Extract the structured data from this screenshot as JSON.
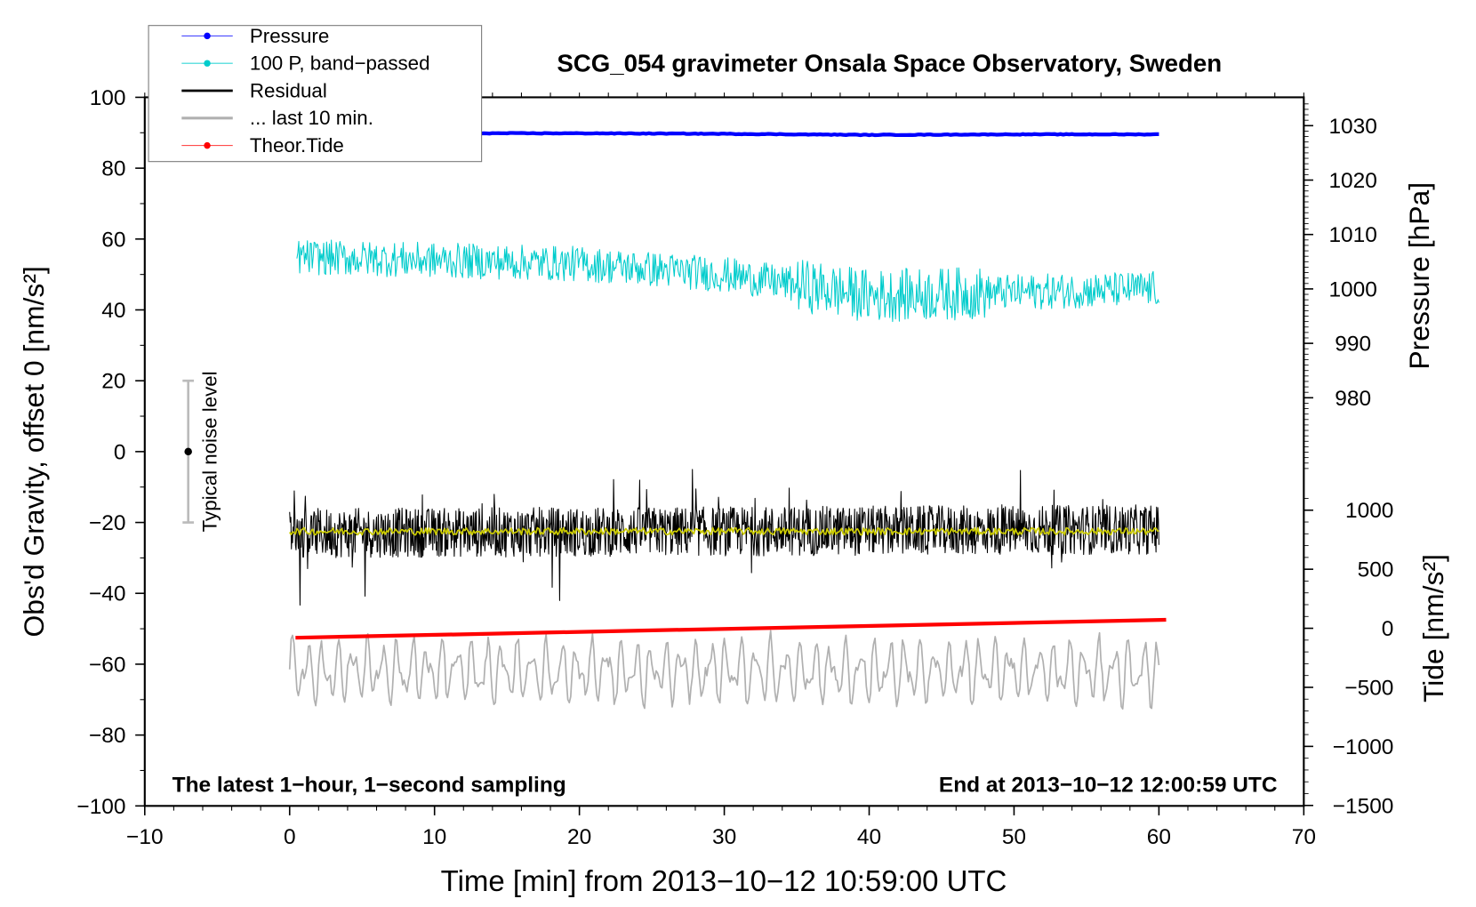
{
  "chart_data": {
    "type": "line",
    "title": "SCG_054 gravimeter Onsala Space Observatory, Sweden",
    "xlabel": "Time [min] from 2013−10−12 10:59:00 UTC",
    "ylabel_left": "Obs'd Gravity, offset 0 [nm/s²]",
    "ylabel_right_pressure": "Pressure [hPa]",
    "ylabel_right_tide": "Tide [nm/s²]",
    "xlim": [
      -10,
      70
    ],
    "ylim_left": [
      -100,
      100
    ],
    "pressure_axis_range": [
      980,
      1030
    ],
    "tide_axis_range": [
      -1500,
      1000
    ],
    "x_ticks": [
      "−10",
      "0",
      "10",
      "20",
      "30",
      "40",
      "50",
      "60",
      "70"
    ],
    "x_tick_values": [
      -10,
      0,
      10,
      20,
      30,
      40,
      50,
      60,
      70
    ],
    "y_left_ticks": [
      "100",
      "80",
      "60",
      "40",
      "20",
      "0",
      "−20",
      "−40",
      "−60",
      "−80",
      "−100"
    ],
    "y_left_tick_values": [
      100,
      80,
      60,
      40,
      20,
      0,
      -20,
      -40,
      -60,
      -80,
      -100
    ],
    "pressure_ticks": [
      "1030",
      "1020",
      "1010",
      "1000",
      "990",
      "980"
    ],
    "pressure_tick_values": [
      1030,
      1020,
      1010,
      1000,
      990,
      980
    ],
    "tide_ticks": [
      "1000",
      "500",
      "0",
      "−500",
      "−1000",
      "−1500"
    ],
    "tide_tick_values": [
      1000,
      500,
      0,
      -500,
      -1000,
      -1500
    ],
    "annotation_left": "The latest 1−hour, 1−second sampling",
    "annotation_right": "End at 2013−10−12 12:00:59 UTC",
    "noise_bar": {
      "label": "Typical noise level",
      "x": -7,
      "center": 0,
      "low": -20,
      "high": 20
    },
    "legend": {
      "placement": "top-left",
      "entries": [
        {
          "label": "Pressure",
          "color": "#0000ff",
          "marker": true
        },
        {
          "label": "100 P, band−passed",
          "color": "#00cccc",
          "marker": true
        },
        {
          "label": "Residual",
          "color": "#000000",
          "marker": false
        },
        {
          "label": "... last 10 min.",
          "color": "#b0b0b0",
          "marker": false
        },
        {
          "label": "Theor.Tide",
          "color": "#ff0000",
          "marker": true
        }
      ]
    },
    "series": [
      {
        "name": "Pressure",
        "axis": "pressure",
        "color": "#0000ff",
        "x": [
          0,
          10,
          20,
          30,
          40,
          50,
          60
        ],
        "values": [
          1028.7,
          1028.6,
          1028.6,
          1028.5,
          1028.3,
          1028.4,
          1028.4
        ]
      },
      {
        "name": "100 P, band-passed",
        "axis": "left",
        "color": "#00cccc",
        "x": [
          0,
          10,
          20,
          30,
          40,
          50,
          60
        ],
        "values": [
          55,
          54,
          53,
          50,
          44,
          45,
          46
        ],
        "noise_amplitude": 5
      },
      {
        "name": "Residual",
        "axis": "left",
        "color": "#000000",
        "x": [
          0,
          60
        ],
        "values": [
          -23,
          -22
        ],
        "noise_amplitude": 7,
        "spike_amplitude": 17
      },
      {
        "name": "Residual smoothed",
        "axis": "left",
        "color": "#cccc00",
        "x": [
          0,
          60
        ],
        "values": [
          -22.5,
          -22.5
        ],
        "noise_amplitude": 1
      },
      {
        "name": "... last 10 min.",
        "axis": "left",
        "color": "#b0b0b0",
        "x": [
          0,
          60
        ],
        "values": [
          -62,
          -62
        ],
        "noise_amplitude": 11
      },
      {
        "name": "Theor.Tide",
        "axis": "tide",
        "color": "#ff0000",
        "x": [
          0.4,
          60.5
        ],
        "values": [
          -80,
          72
        ]
      }
    ]
  }
}
